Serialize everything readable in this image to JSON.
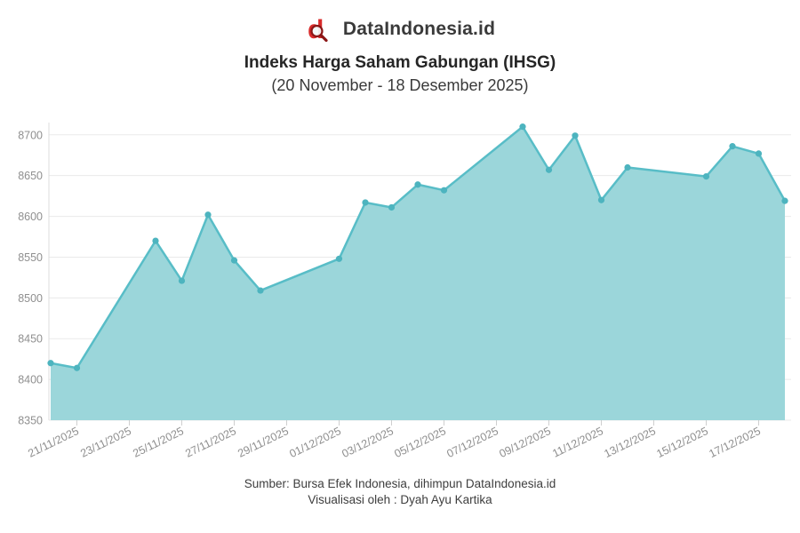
{
  "header": {
    "brand": "DataIndonesia.id",
    "logo_icon": "dataindonesia-magnifier-d-logo"
  },
  "title": "Indeks Harga Saham Gabungan (IHSG)",
  "subtitle": "(20 November - 18 Desember 2025)",
  "footer": {
    "source": "Sumber: Bursa Efek Indonesia, dihimpun DataIndonesia.id",
    "credit": "Visualisasi oleh : Dyah Ayu Kartika"
  },
  "colors": {
    "brand_red": "#D92B2B",
    "brand_dark_red": "#8B1616",
    "line": "#58BDC7",
    "fill": "#9BD6DA",
    "marker": "#4DB4BF",
    "grid": "#EAEAEA",
    "axis_line": "#DCDCDC",
    "tick": "#CFCFCF",
    "axis_text": "#8F8F8F",
    "title_text": "#262626",
    "subtitle_text": "#3A3A3A",
    "brand_text": "#3A3A3A",
    "footer_text": "#3E3E3E"
  },
  "chart_data": {
    "type": "area",
    "title": "Indeks Harga Saham Gabungan (IHSG)",
    "subtitle": "(20 November - 18 Desember 2025)",
    "x": [
      "20/11/2025",
      "21/11/2025",
      "24/11/2025",
      "25/11/2025",
      "26/11/2025",
      "27/11/2025",
      "28/11/2025",
      "01/12/2025",
      "02/12/2025",
      "03/12/2025",
      "04/12/2025",
      "05/12/2025",
      "08/12/2025",
      "09/12/2025",
      "10/12/2025",
      "11/12/2025",
      "12/12/2025",
      "15/12/2025",
      "16/12/2025",
      "17/12/2025",
      "18/12/2025"
    ],
    "values": [
      8420,
      8414,
      8570,
      8521,
      8602,
      8546,
      8509,
      8548,
      8617,
      8611,
      8639,
      8632,
      8710,
      8657,
      8699,
      8620,
      8660,
      8649,
      8686,
      8677,
      8619
    ],
    "x_tick_labels": [
      "21/11/2025",
      "23/11/2025",
      "25/11/2025",
      "27/11/2025",
      "29/11/2025",
      "01/12/2025",
      "03/12/2025",
      "05/12/2025",
      "07/12/2025",
      "09/12/2025",
      "11/12/2025",
      "13/12/2025",
      "15/12/2025",
      "17/12/2025"
    ],
    "y_ticks": [
      8350,
      8400,
      8450,
      8500,
      8550,
      8600,
      8650,
      8700
    ],
    "ylim": [
      8350,
      8700
    ],
    "xlabel": "",
    "ylabel": "",
    "grid": true,
    "legend": false
  }
}
